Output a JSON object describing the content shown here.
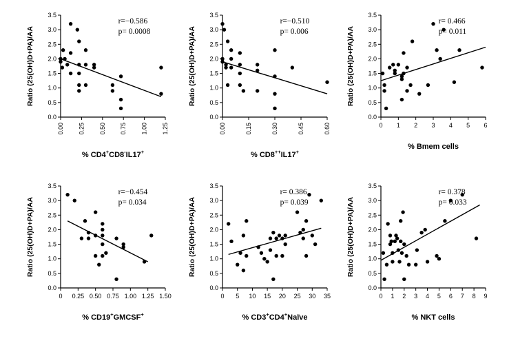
{
  "chart_data": [
    {
      "type": "scatter",
      "ylabel": "Ratio (25(OH)D+PA)/AA",
      "xlabel_parts": [
        [
          "% CD4",
          ""
        ],
        [
          "+",
          "sup"
        ],
        [
          "CD8",
          ""
        ],
        [
          "-",
          "sup"
        ],
        [
          "IL17",
          ""
        ],
        [
          "+",
          "sup"
        ]
      ],
      "r_text": "r=−0.586",
      "p_text": "p= 0.0008",
      "xlim": [
        0,
        1.25
      ],
      "ylim": [
        0,
        3.5
      ],
      "xticks": [
        "0.00",
        "0.25",
        "0.50",
        "0.75",
        "1.00",
        "1.25"
      ],
      "yticks": [
        "0.0",
        "0.5",
        "1.0",
        "1.5",
        "2.0",
        "2.5",
        "3.0",
        "3.5"
      ],
      "x_tick_rotated": true,
      "fit": {
        "x": [
          0,
          1.2
        ],
        "y": [
          2.0,
          0.7
        ]
      },
      "points": [
        [
          0.0,
          2.0
        ],
        [
          0.0,
          1.9
        ],
        [
          0.02,
          1.7
        ],
        [
          0.03,
          2.3
        ],
        [
          0.05,
          2.0
        ],
        [
          0.08,
          1.8
        ],
        [
          0.12,
          3.2
        ],
        [
          0.12,
          2.2
        ],
        [
          0.12,
          1.5
        ],
        [
          0.2,
          3.0
        ],
        [
          0.22,
          2.6
        ],
        [
          0.22,
          1.8
        ],
        [
          0.22,
          1.5
        ],
        [
          0.22,
          1.1
        ],
        [
          0.22,
          0.9
        ],
        [
          0.3,
          2.3
        ],
        [
          0.3,
          1.8
        ],
        [
          0.3,
          1.1
        ],
        [
          0.4,
          1.8
        ],
        [
          0.4,
          1.7
        ],
        [
          0.62,
          1.1
        ],
        [
          0.62,
          0.9
        ],
        [
          0.72,
          1.4
        ],
        [
          0.72,
          0.6
        ],
        [
          0.72,
          0.3
        ],
        [
          1.2,
          1.7
        ],
        [
          1.2,
          0.8
        ]
      ]
    },
    {
      "type": "scatter",
      "ylabel": "Ratio (25(OH)D+PA)/AA",
      "xlabel_parts": [
        [
          "% CD8",
          ""
        ],
        [
          "++",
          "sup"
        ],
        [
          "IL17",
          ""
        ],
        [
          "+",
          "sup"
        ]
      ],
      "r_text": "r=−0.510",
      "p_text": "p= 0.006",
      "xlim": [
        0,
        0.6
      ],
      "ylim": [
        0,
        3.5
      ],
      "xticks": [
        "0.00",
        "0.15",
        "0.30",
        "0.45",
        "0.60"
      ],
      "yticks": [
        "0.0",
        "0.5",
        "1.0",
        "1.5",
        "2.0",
        "2.5",
        "3.0",
        "3.5"
      ],
      "x_tick_rotated": true,
      "fit": {
        "x": [
          0,
          0.6
        ],
        "y": [
          1.9,
          0.8
        ]
      },
      "points": [
        [
          0.0,
          3.2
        ],
        [
          0.0,
          2.0
        ],
        [
          0.0,
          1.9
        ],
        [
          0.01,
          3.0
        ],
        [
          0.02,
          1.8
        ],
        [
          0.02,
          1.7
        ],
        [
          0.03,
          2.6
        ],
        [
          0.03,
          1.1
        ],
        [
          0.05,
          2.3
        ],
        [
          0.05,
          2.0
        ],
        [
          0.05,
          1.7
        ],
        [
          0.1,
          2.2
        ],
        [
          0.1,
          1.8
        ],
        [
          0.1,
          1.5
        ],
        [
          0.1,
          1.1
        ],
        [
          0.12,
          0.9
        ],
        [
          0.2,
          1.8
        ],
        [
          0.2,
          1.6
        ],
        [
          0.2,
          0.9
        ],
        [
          0.3,
          2.3
        ],
        [
          0.3,
          1.4
        ],
        [
          0.3,
          0.8
        ],
        [
          0.3,
          0.3
        ],
        [
          0.4,
          1.7
        ],
        [
          0.6,
          1.2
        ]
      ]
    },
    {
      "type": "scatter",
      "ylabel": "Ratio (25(OH)D+PA)/AA",
      "xlabel_parts": [
        [
          "% Bmem cells",
          ""
        ]
      ],
      "r_text": "r= 0.466",
      "p_text": "p= 0.011",
      "xlim": [
        0,
        6
      ],
      "ylim": [
        0,
        3.5
      ],
      "xticks": [
        "0",
        "1",
        "2",
        "3",
        "4",
        "5",
        "6"
      ],
      "yticks": [
        "0.0",
        "0.5",
        "1.0",
        "1.5",
        "2.0",
        "2.5",
        "3.0",
        "3.5"
      ],
      "x_tick_rotated": false,
      "fit": {
        "x": [
          0,
          6
        ],
        "y": [
          1.25,
          2.4
        ]
      },
      "points": [
        [
          0.1,
          1.5
        ],
        [
          0.2,
          1.1
        ],
        [
          0.2,
          0.9
        ],
        [
          0.3,
          0.3
        ],
        [
          0.5,
          1.7
        ],
        [
          0.7,
          1.8
        ],
        [
          0.8,
          1.6
        ],
        [
          0.8,
          1.5
        ],
        [
          1.0,
          1.8
        ],
        [
          1.2,
          1.4
        ],
        [
          1.2,
          1.3
        ],
        [
          1.2,
          0.6
        ],
        [
          1.3,
          1.5
        ],
        [
          1.3,
          2.2
        ],
        [
          1.5,
          0.9
        ],
        [
          1.5,
          1.7
        ],
        [
          1.7,
          1.1
        ],
        [
          1.8,
          2.6
        ],
        [
          2.2,
          0.8
        ],
        [
          2.7,
          1.1
        ],
        [
          3.0,
          3.2
        ],
        [
          3.2,
          2.3
        ],
        [
          3.4,
          2.0
        ],
        [
          3.6,
          3.0
        ],
        [
          4.2,
          1.2
        ],
        [
          4.5,
          2.3
        ],
        [
          5.8,
          1.7
        ]
      ]
    },
    {
      "type": "scatter",
      "ylabel": "Ratio (25(OH)D+PA)/AA",
      "xlabel_parts": [
        [
          "% CD19",
          ""
        ],
        [
          "+",
          "sup"
        ],
        [
          "GMCSF",
          ""
        ],
        [
          "+",
          "sup"
        ]
      ],
      "r_text": "r=−0.454",
      "p_text": "p= 0.034",
      "xlim": [
        0,
        1.5
      ],
      "ylim": [
        0,
        3.5
      ],
      "xticks": [
        "0",
        "0.25",
        "0.50",
        "0.75",
        "1.00",
        "1.25",
        "1.50"
      ],
      "yticks": [
        "0.0",
        "0.5",
        "1.0",
        "1.5",
        "2.0",
        "2.5",
        "3.0",
        "3.5"
      ],
      "x_tick_rotated": false,
      "fit": {
        "x": [
          0.1,
          1.25
        ],
        "y": [
          2.3,
          0.9
        ]
      },
      "points": [
        [
          0.1,
          3.2
        ],
        [
          0.2,
          3.0
        ],
        [
          0.3,
          1.7
        ],
        [
          0.35,
          2.3
        ],
        [
          0.4,
          1.9
        ],
        [
          0.4,
          1.7
        ],
        [
          0.5,
          2.6
        ],
        [
          0.5,
          1.8
        ],
        [
          0.5,
          1.1
        ],
        [
          0.55,
          0.8
        ],
        [
          0.6,
          2.2
        ],
        [
          0.6,
          2.0
        ],
        [
          0.6,
          1.8
        ],
        [
          0.6,
          1.5
        ],
        [
          0.6,
          1.1
        ],
        [
          0.65,
          1.2
        ],
        [
          0.8,
          1.7
        ],
        [
          0.8,
          0.3
        ],
        [
          0.9,
          1.5
        ],
        [
          0.9,
          1.4
        ],
        [
          1.2,
          0.9
        ],
        [
          1.3,
          1.8
        ]
      ]
    },
    {
      "type": "scatter",
      "ylabel": "Ratio (25(OH)D+PA)/AA",
      "xlabel_parts": [
        [
          "% CD3",
          ""
        ],
        [
          "+",
          "sup"
        ],
        [
          "CD4",
          ""
        ],
        [
          "+",
          "sup"
        ],
        [
          "Naïve",
          ""
        ]
      ],
      "r_text": "r= 0.386",
      "p_text": "p= 0.039",
      "xlim": [
        0,
        35
      ],
      "ylim": [
        0,
        3.5
      ],
      "xticks": [
        "0",
        "5",
        "10",
        "15",
        "20",
        "25",
        "30",
        "35"
      ],
      "yticks": [
        "0.0",
        "0.5",
        "1.0",
        "1.5",
        "2.0",
        "2.5",
        "3.0",
        "3.5"
      ],
      "x_tick_rotated": false,
      "fit": {
        "x": [
          2,
          33
        ],
        "y": [
          1.15,
          2.05
        ]
      },
      "points": [
        [
          2,
          2.2
        ],
        [
          3,
          1.6
        ],
        [
          5,
          0.8
        ],
        [
          6,
          1.2
        ],
        [
          7,
          1.8
        ],
        [
          7,
          0.6
        ],
        [
          8,
          2.3
        ],
        [
          8,
          1.1
        ],
        [
          12,
          1.4
        ],
        [
          13,
          1.2
        ],
        [
          14,
          1.0
        ],
        [
          15,
          0.9
        ],
        [
          16,
          1.3
        ],
        [
          16,
          1.7
        ],
        [
          17,
          1.9
        ],
        [
          17,
          0.3
        ],
        [
          18,
          1.7
        ],
        [
          18,
          1.1
        ],
        [
          19,
          1.8
        ],
        [
          20,
          1.7
        ],
        [
          20,
          1.1
        ],
        [
          21,
          1.8
        ],
        [
          21,
          1.5
        ],
        [
          25,
          2.6
        ],
        [
          26,
          1.9
        ],
        [
          27,
          2.0
        ],
        [
          27,
          1.7
        ],
        [
          28,
          2.3
        ],
        [
          28,
          1.1
        ],
        [
          29,
          3.2
        ],
        [
          30,
          1.8
        ],
        [
          31,
          1.5
        ],
        [
          33,
          3.0
        ]
      ]
    },
    {
      "type": "scatter",
      "ylabel": "Ratio (25(OH)D+PA)/AA",
      "xlabel_parts": [
        [
          "% NKT cells",
          ""
        ]
      ],
      "r_text": "r= 0.378",
      "p_text": "p= 0.033",
      "xlim": [
        0,
        9
      ],
      "ylim": [
        0,
        3.5
      ],
      "xticks": [
        "0",
        "1",
        "2",
        "3",
        "4",
        "5",
        "6",
        "7",
        "8",
        "9"
      ],
      "yticks": [
        "0.0",
        "0.5",
        "1.0",
        "1.5",
        "2.0",
        "2.5",
        "3.0",
        "3.5"
      ],
      "x_tick_rotated": false,
      "fit": {
        "x": [
          0,
          8.5
        ],
        "y": [
          0.95,
          2.85
        ]
      },
      "points": [
        [
          0.2,
          1.2
        ],
        [
          0.3,
          0.3
        ],
        [
          0.5,
          0.8
        ],
        [
          0.6,
          2.2
        ],
        [
          0.8,
          1.8
        ],
        [
          0.8,
          1.5
        ],
        [
          0.9,
          1.6
        ],
        [
          1.0,
          0.9
        ],
        [
          1.0,
          1.2
        ],
        [
          1.2,
          1.6
        ],
        [
          1.3,
          1.8
        ],
        [
          1.4,
          1.7
        ],
        [
          1.5,
          1.3
        ],
        [
          1.6,
          0.9
        ],
        [
          1.7,
          2.3
        ],
        [
          1.7,
          1.6
        ],
        [
          1.8,
          1.2
        ],
        [
          1.9,
          2.6
        ],
        [
          2.0,
          1.5
        ],
        [
          2.0,
          0.3
        ],
        [
          2.2,
          1.1
        ],
        [
          2.4,
          0.8
        ],
        [
          3.0,
          0.8
        ],
        [
          3.1,
          1.3
        ],
        [
          3.5,
          1.9
        ],
        [
          3.8,
          2.0
        ],
        [
          4.0,
          0.9
        ],
        [
          4.8,
          1.1
        ],
        [
          5.0,
          1.0
        ],
        [
          5.5,
          2.3
        ],
        [
          6.0,
          3.0
        ],
        [
          7.0,
          3.2
        ],
        [
          8.2,
          1.7
        ]
      ]
    }
  ]
}
